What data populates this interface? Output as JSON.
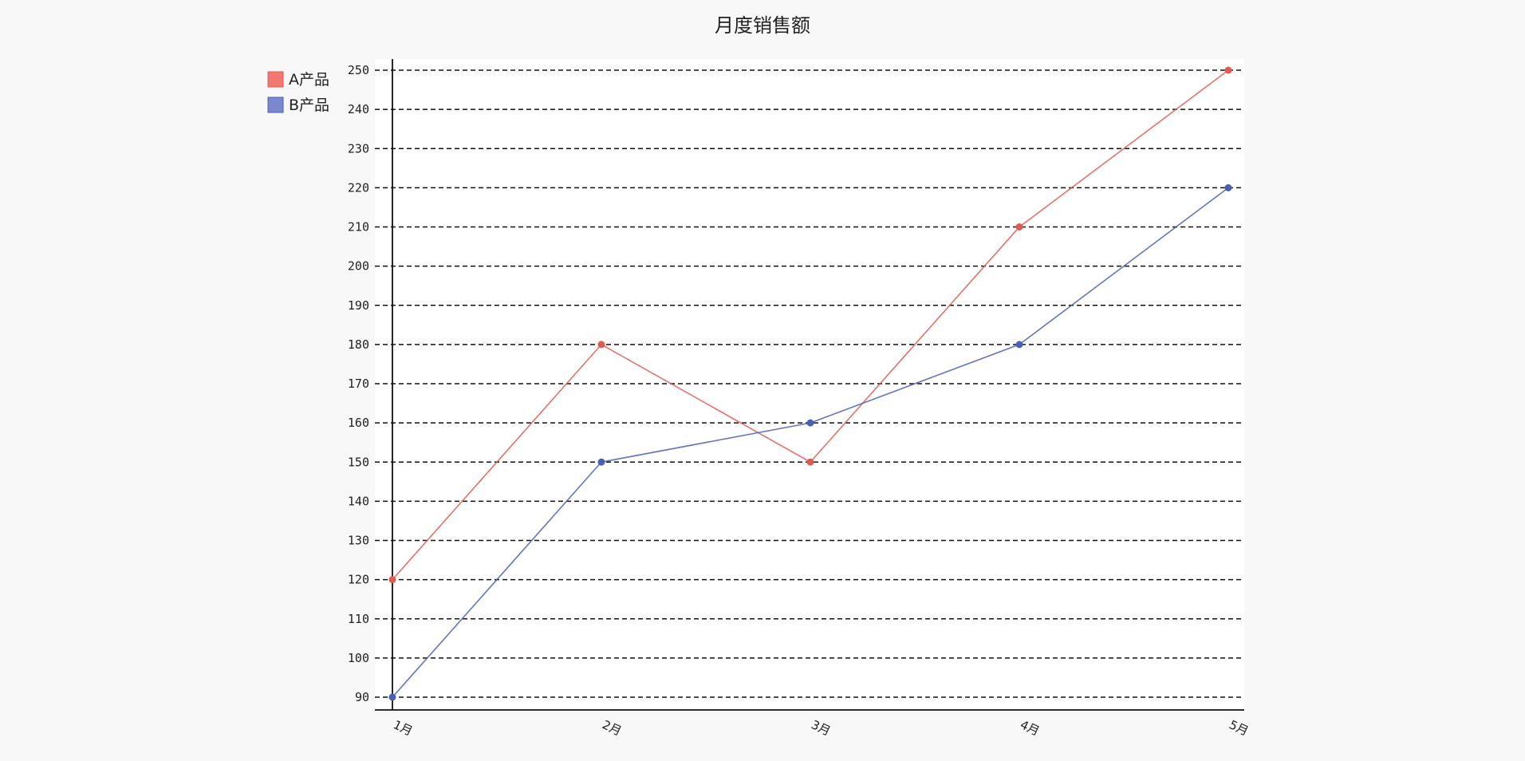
{
  "chart_data": {
    "type": "line",
    "title": "月度销售额",
    "categories": [
      "1月",
      "2月",
      "3月",
      "4月",
      "5月"
    ],
    "series": [
      {
        "name": "A产品",
        "values": [
          120,
          180,
          150,
          210,
          250
        ],
        "color": "#e05a50"
      },
      {
        "name": "B产品",
        "values": [
          90,
          150,
          160,
          180,
          220
        ],
        "color": "#4a5fb5"
      }
    ],
    "ylim": [
      90,
      250
    ],
    "yticks": [
      90,
      100,
      110,
      120,
      130,
      140,
      150,
      160,
      170,
      180,
      190,
      200,
      210,
      220,
      230,
      240,
      250
    ],
    "grid": true,
    "grid_style": "dashed horizontal",
    "legend_placement": "top-left",
    "legend_swatch_colors": [
      "#f07a72",
      "#7b88cc"
    ],
    "xlabel": "",
    "ylabel": ""
  }
}
